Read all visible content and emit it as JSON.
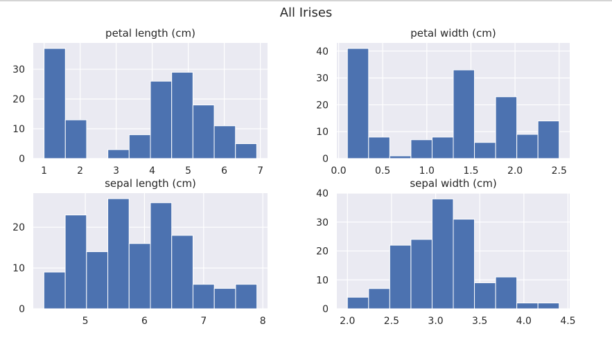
{
  "figure": {
    "title": "All Irises"
  },
  "chart_data": [
    {
      "type": "bar",
      "title": "petal length (cm)",
      "bin_edges": [
        1.0,
        1.59,
        2.18,
        2.77,
        3.36,
        3.95,
        4.54,
        5.13,
        5.72,
        6.31,
        6.9
      ],
      "values": [
        37,
        13,
        0,
        3,
        8,
        26,
        29,
        18,
        11,
        5
      ],
      "xticks": [
        1,
        2,
        3,
        4,
        5,
        6,
        7
      ],
      "yticks": [
        0,
        10,
        20,
        30
      ],
      "xlim": [
        0.7,
        7.2
      ],
      "ylim": [
        0,
        38.85
      ],
      "grid": true
    },
    {
      "type": "bar",
      "title": "petal width (cm)",
      "bin_edges": [
        0.1,
        0.34,
        0.58,
        0.82,
        1.06,
        1.3,
        1.54,
        1.78,
        2.02,
        2.26,
        2.5
      ],
      "values": [
        41,
        8,
        1,
        7,
        8,
        33,
        6,
        23,
        9,
        14
      ],
      "xticks": [
        0.0,
        0.5,
        1.0,
        1.5,
        2.0,
        2.5
      ],
      "yticks": [
        0,
        10,
        20,
        30,
        40
      ],
      "xlim": [
        -0.02,
        2.62
      ],
      "ylim": [
        0,
        43.05
      ],
      "grid": true
    },
    {
      "type": "bar",
      "title": "sepal length (cm)",
      "bin_edges": [
        4.3,
        4.66,
        5.02,
        5.38,
        5.74,
        6.1,
        6.46,
        6.82,
        7.18,
        7.54,
        7.9
      ],
      "values": [
        9,
        23,
        14,
        27,
        16,
        26,
        18,
        6,
        5,
        6
      ],
      "xticks": [
        5,
        6,
        7,
        8
      ],
      "yticks": [
        0,
        10,
        20
      ],
      "xlim": [
        4.12,
        8.08
      ],
      "ylim": [
        0,
        28.35
      ],
      "grid": true
    },
    {
      "type": "bar",
      "title": "sepal width (cm)",
      "bin_edges": [
        2.0,
        2.24,
        2.48,
        2.72,
        2.96,
        3.2,
        3.44,
        3.68,
        3.92,
        4.16,
        4.4
      ],
      "values": [
        4,
        7,
        22,
        24,
        38,
        31,
        9,
        11,
        2,
        2
      ],
      "xticks": [
        2.0,
        2.5,
        3.0,
        3.5,
        4.0,
        4.5
      ],
      "yticks": [
        0,
        10,
        20,
        30,
        40
      ],
      "xlim": [
        1.88,
        4.52
      ],
      "ylim": [
        0,
        40
      ],
      "grid": true
    }
  ]
}
